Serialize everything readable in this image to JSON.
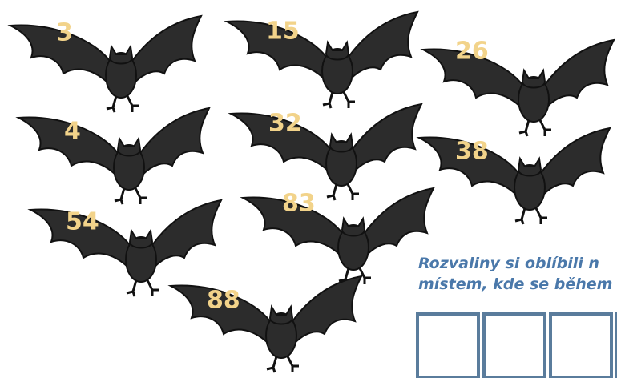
{
  "bats": [
    {
      "label": "3"
    },
    {
      "label": "15"
    },
    {
      "label": "26"
    },
    {
      "label": "4"
    },
    {
      "label": "32"
    },
    {
      "label": "38"
    },
    {
      "label": "54"
    },
    {
      "label": "83"
    },
    {
      "label": "88"
    }
  ],
  "prompt": {
    "lines": [
      "Rozvaliny si oblíbili n",
      "místem, kde se během"
    ]
  }
}
